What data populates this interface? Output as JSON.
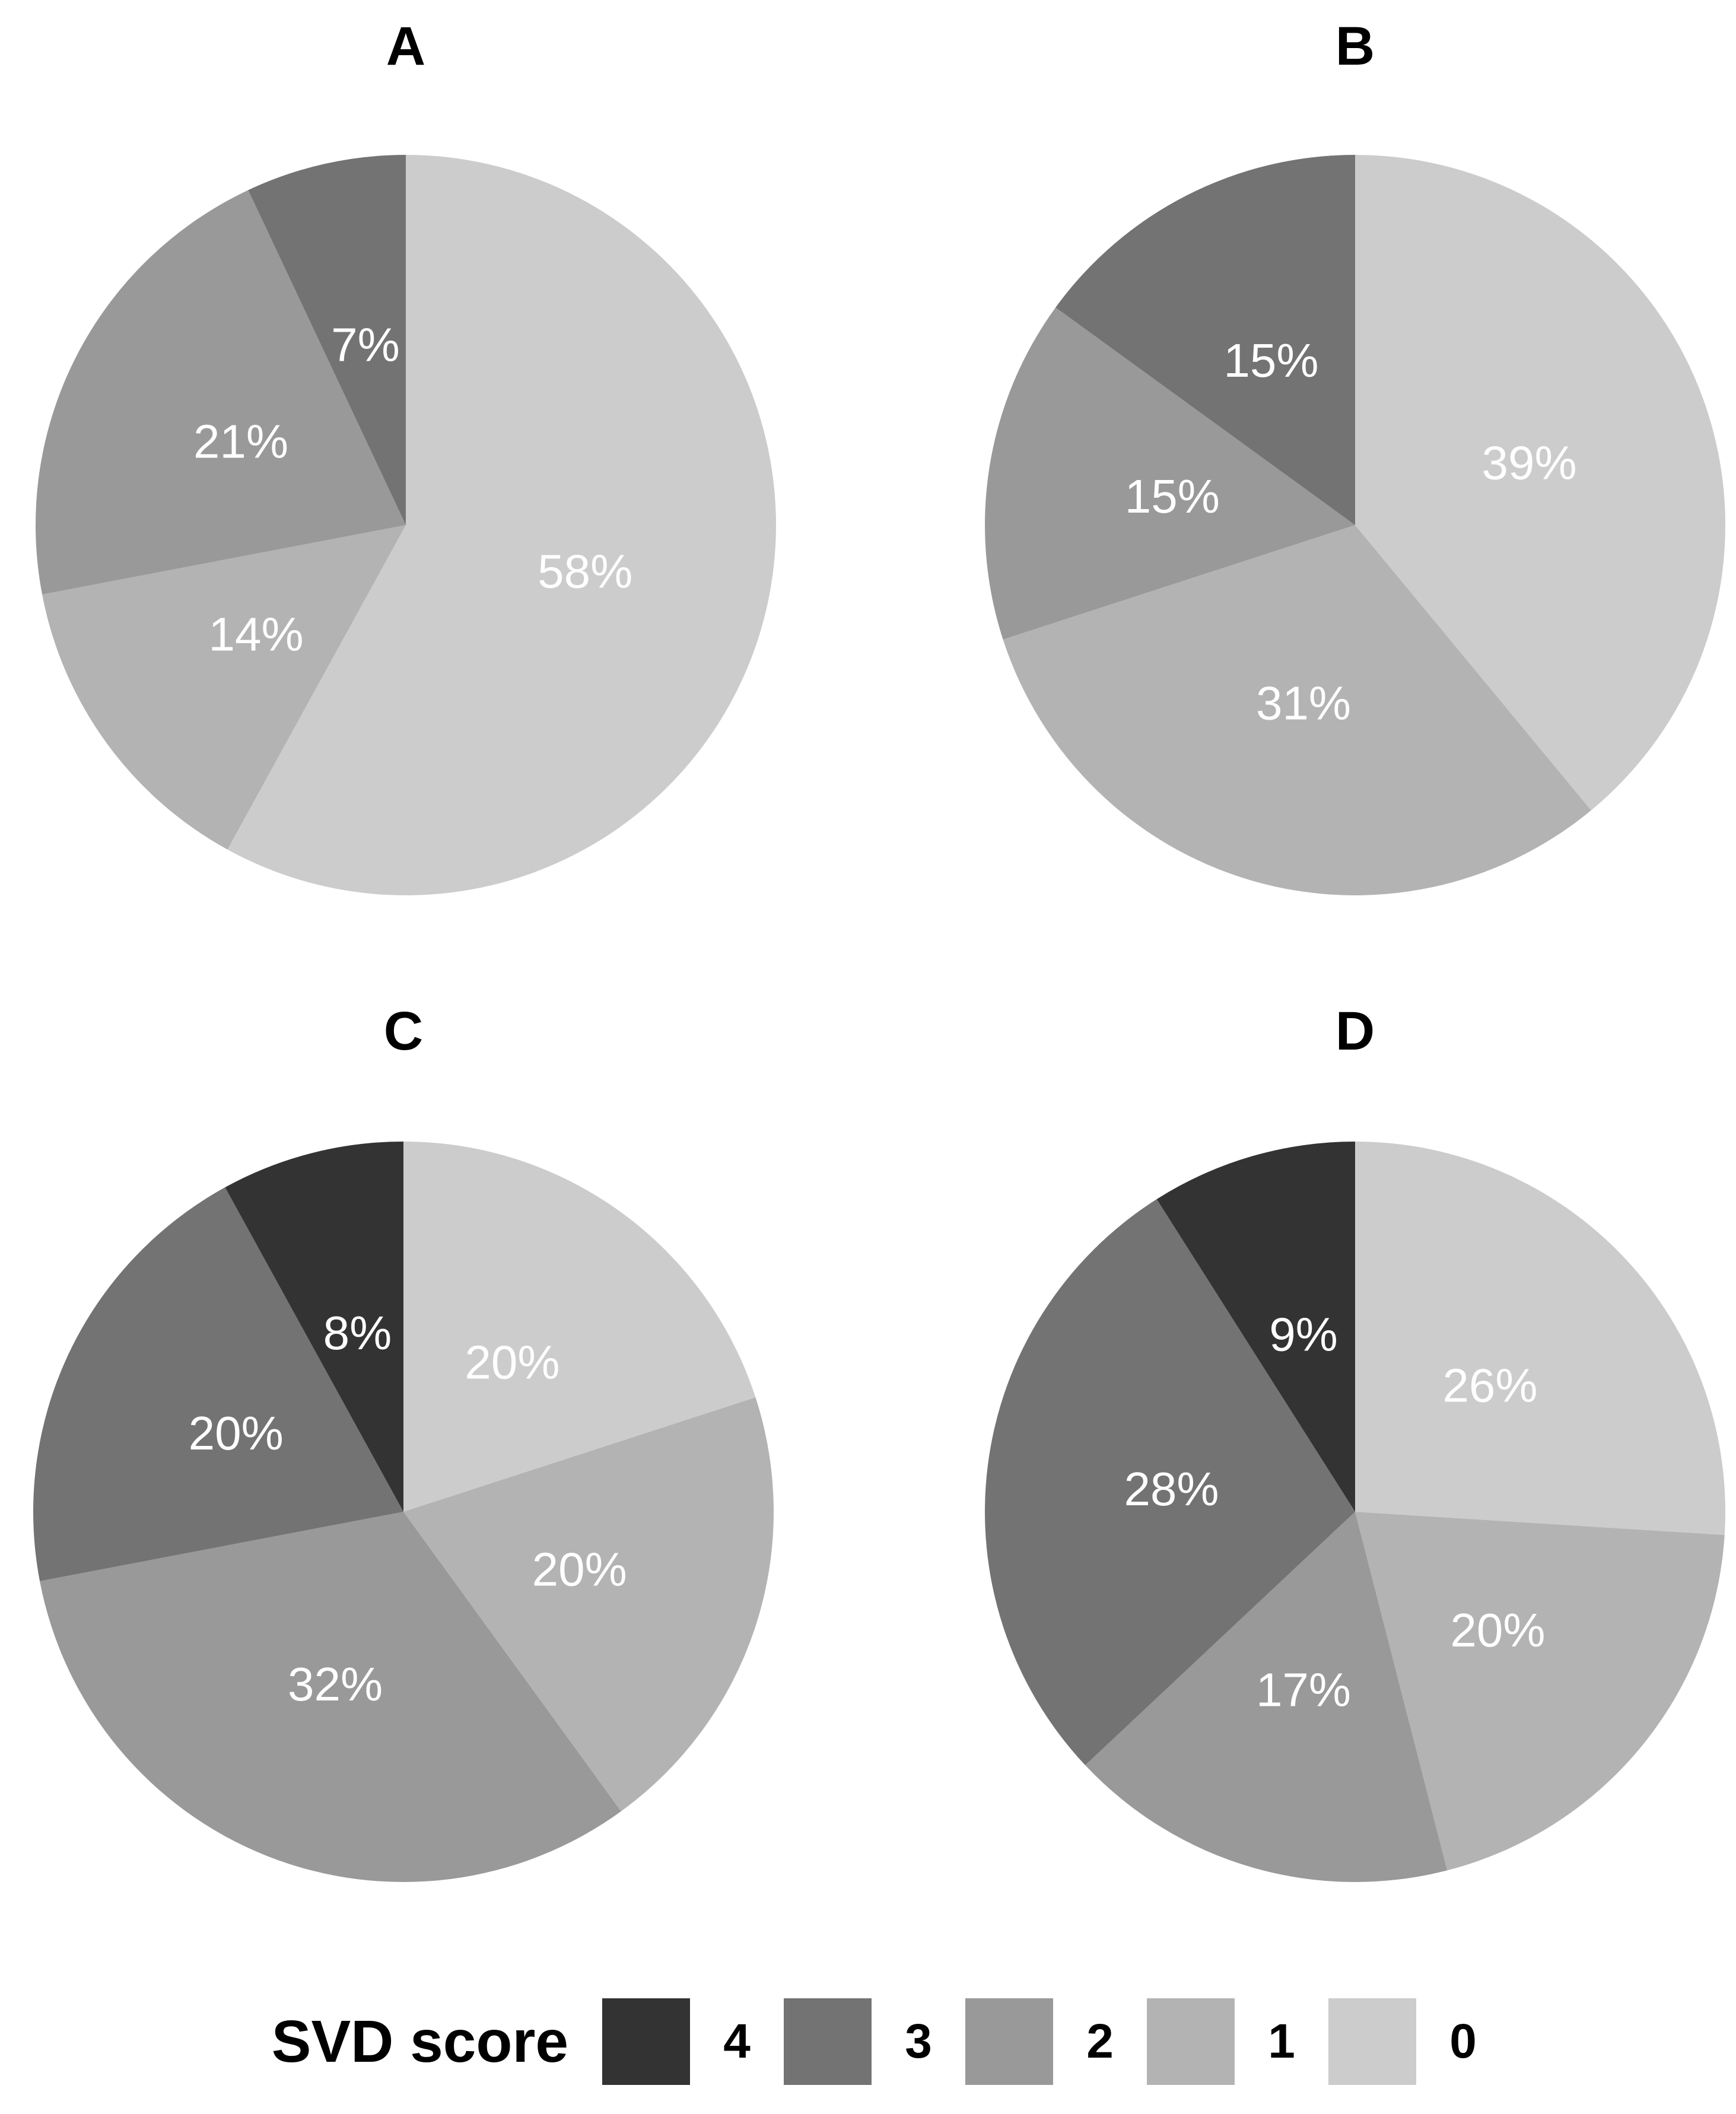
{
  "figure": {
    "background": "#ffffff",
    "panels": [
      "A",
      "B",
      "C",
      "D"
    ],
    "label_color": "#ffffff",
    "legend": {
      "title": "SVD score",
      "items": [
        {
          "label": "4",
          "color": "#333333"
        },
        {
          "label": "3",
          "color": "#737373"
        },
        {
          "label": "2",
          "color": "#999999"
        },
        {
          "label": "1",
          "color": "#b3b3b3"
        },
        {
          "label": "0",
          "color": "#cccccc"
        }
      ]
    }
  },
  "chart_data": [
    {
      "type": "pie",
      "title": "A",
      "legend_title": "SVD score",
      "start": "12-oclock",
      "direction": "clockwise",
      "slices": [
        {
          "svd_score": "0",
          "pct": 58,
          "label": "58%",
          "color": "#cccccc"
        },
        {
          "svd_score": "1",
          "pct": 14,
          "label": "14%",
          "color": "#b3b3b3"
        },
        {
          "svd_score": "2",
          "pct": 21,
          "label": "21%",
          "color": "#999999"
        },
        {
          "svd_score": "3",
          "pct": 7,
          "label": "7%",
          "color": "#737373"
        }
      ]
    },
    {
      "type": "pie",
      "title": "B",
      "legend_title": "SVD score",
      "start": "12-oclock",
      "direction": "clockwise",
      "slices": [
        {
          "svd_score": "0",
          "pct": 39,
          "label": "39%",
          "color": "#cccccc"
        },
        {
          "svd_score": "1",
          "pct": 31,
          "label": "31%",
          "color": "#b3b3b3"
        },
        {
          "svd_score": "2",
          "pct": 15,
          "label": "15%",
          "color": "#999999"
        },
        {
          "svd_score": "3",
          "pct": 15,
          "label": "15%",
          "color": "#737373"
        }
      ]
    },
    {
      "type": "pie",
      "title": "C",
      "legend_title": "SVD score",
      "start": "12-oclock",
      "direction": "clockwise",
      "slices": [
        {
          "svd_score": "0",
          "pct": 20,
          "label": "20%",
          "color": "#cccccc"
        },
        {
          "svd_score": "1",
          "pct": 20,
          "label": "20%",
          "color": "#b3b3b3"
        },
        {
          "svd_score": "2",
          "pct": 32,
          "label": "32%",
          "color": "#999999"
        },
        {
          "svd_score": "3",
          "pct": 20,
          "label": "20%",
          "color": "#737373"
        },
        {
          "svd_score": "4",
          "pct": 8,
          "label": "8%",
          "color": "#333333"
        }
      ]
    },
    {
      "type": "pie",
      "title": "D",
      "legend_title": "SVD score",
      "start": "12-oclock",
      "direction": "clockwise",
      "slices": [
        {
          "svd_score": "0",
          "pct": 26,
          "label": "26%",
          "color": "#cccccc"
        },
        {
          "svd_score": "1",
          "pct": 20,
          "label": "20%",
          "color": "#b3b3b3"
        },
        {
          "svd_score": "2",
          "pct": 17,
          "label": "17%",
          "color": "#999999"
        },
        {
          "svd_score": "3",
          "pct": 28,
          "label": "28%",
          "color": "#737373"
        },
        {
          "svd_score": "4",
          "pct": 9,
          "label": "9%",
          "color": "#333333"
        }
      ]
    }
  ]
}
